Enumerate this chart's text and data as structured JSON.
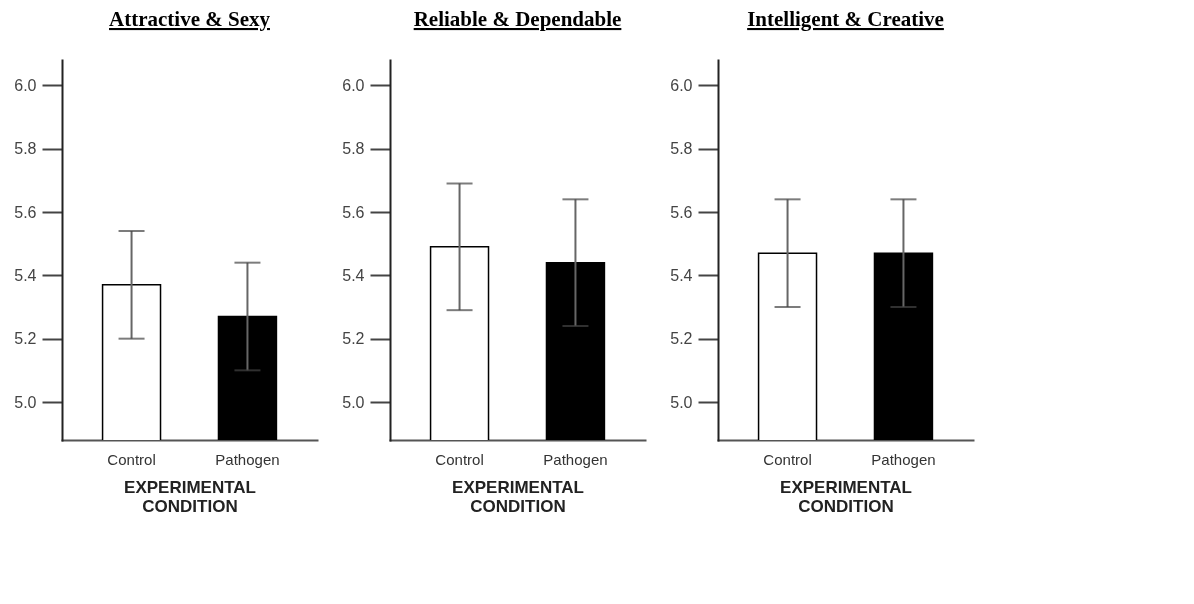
{
  "chart_data": [
    {
      "type": "bar",
      "title": "Attractive & Sexy",
      "xlabel": "EXPERIMENTAL CONDITION",
      "categories": [
        "Control",
        "Pathogen"
      ],
      "values": [
        5.37,
        5.27
      ],
      "errors": [
        0.17,
        0.17
      ],
      "colors": [
        "#ffffff",
        "#000000"
      ],
      "ylim": [
        4.88,
        6.08
      ],
      "yticks": [
        {
          "value": 5.0,
          "label": "5.0"
        },
        {
          "value": 5.2,
          "label": "5.2"
        },
        {
          "value": 5.4,
          "label": "5.4"
        },
        {
          "value": 5.6,
          "label": "5.6"
        },
        {
          "value": 5.8,
          "label": "5.8"
        },
        {
          "value": 6.0,
          "label": "6.0"
        }
      ],
      "grid": false,
      "legend": false
    },
    {
      "type": "bar",
      "title": "Reliable & Dependable",
      "xlabel": "EXPERIMENTAL CONDITION",
      "categories": [
        "Control",
        "Pathogen"
      ],
      "values": [
        5.49,
        5.44
      ],
      "errors": [
        0.2,
        0.2
      ],
      "colors": [
        "#ffffff",
        "#000000"
      ],
      "ylim": [
        4.88,
        6.08
      ],
      "yticks": [
        {
          "value": 5.0,
          "label": "5.0"
        },
        {
          "value": 5.2,
          "label": "5.2"
        },
        {
          "value": 5.4,
          "label": "5.4"
        },
        {
          "value": 5.6,
          "label": "5.6"
        },
        {
          "value": 5.8,
          "label": "5.8"
        },
        {
          "value": 6.0,
          "label": "6.0"
        }
      ],
      "grid": false,
      "legend": false
    },
    {
      "type": "bar",
      "title": "Intelligent & Creative",
      "xlabel": "EXPERIMENTAL CONDITION",
      "categories": [
        "Control",
        "Pathogen"
      ],
      "values": [
        5.47,
        5.47
      ],
      "errors": [
        0.17,
        0.17
      ],
      "colors": [
        "#ffffff",
        "#000000"
      ],
      "ylim": [
        4.88,
        6.08
      ],
      "yticks": [
        {
          "value": 5.0,
          "label": "5.0"
        },
        {
          "value": 5.2,
          "label": "5.2"
        },
        {
          "value": 5.4,
          "label": "5.4"
        },
        {
          "value": 5.6,
          "label": "5.6"
        },
        {
          "value": 5.8,
          "label": "5.8"
        },
        {
          "value": 6.0,
          "label": "6.0"
        }
      ],
      "grid": false,
      "legend": false
    }
  ]
}
